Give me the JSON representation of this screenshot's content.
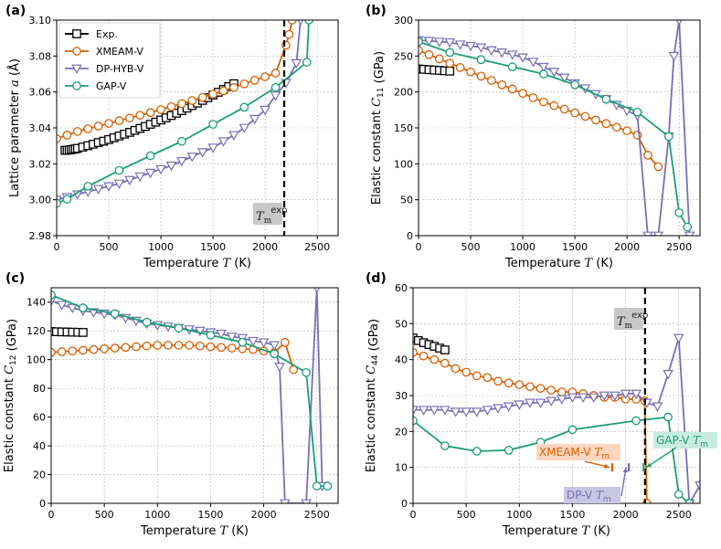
{
  "colors": {
    "exp": "#000000",
    "xmeam": "#d95f02",
    "dp": "#7570b3",
    "gap": "#1b9e77",
    "grid": "#b0b0b0"
  },
  "legend": {
    "entries": [
      {
        "key": "exp",
        "label": "Exp.",
        "marker": "square"
      },
      {
        "key": "xmeam",
        "label": "XMEAM-V",
        "marker": "circle"
      },
      {
        "key": "dp",
        "label": "DP-HYB-V",
        "marker": "triangle-down"
      },
      {
        "key": "gap",
        "label": "GAP-V",
        "marker": "circle"
      }
    ]
  },
  "chart_data": [
    {
      "type": "line",
      "panel": "(a)",
      "xlabel": "Temperature T (K)",
      "ylabel": "Lattice parameter a (Å)",
      "xlim": [
        0,
        2700
      ],
      "ylim": [
        2.98,
        3.1
      ],
      "xticks": [
        0,
        500,
        1000,
        1500,
        2000,
        2500
      ],
      "yticks": [
        2.98,
        3.0,
        3.02,
        3.04,
        3.06,
        3.08,
        3.1
      ],
      "grid": true,
      "legend_position": "top-left",
      "vline": {
        "x": 2183,
        "label": "T_m^exp"
      },
      "series": [
        {
          "key": "exp",
          "name": "Exp.",
          "x": [
            80,
            100,
            120,
            140,
            160,
            180,
            200,
            250,
            300,
            350,
            400,
            450,
            500,
            550,
            600,
            650,
            700,
            750,
            800,
            850,
            900,
            950,
            1000,
            1050,
            1100,
            1150,
            1200,
            1250,
            1300,
            1350,
            1400,
            1450,
            1500,
            1550,
            1600,
            1650,
            1700
          ],
          "y": [
            3.0275,
            3.0276,
            3.0277,
            3.0279,
            3.0281,
            3.0283,
            3.0286,
            3.0293,
            3.0301,
            3.0309,
            3.0318,
            3.0326,
            3.0335,
            3.0345,
            3.0355,
            3.0365,
            3.0375,
            3.0386,
            3.0397,
            3.0408,
            3.042,
            3.0432,
            3.0444,
            3.0456,
            3.0469,
            3.0482,
            3.0496,
            3.051,
            3.0524,
            3.0538,
            3.0553,
            3.0568,
            3.0583,
            3.0598,
            3.0614,
            3.063,
            3.0646
          ]
        },
        {
          "key": "xmeam",
          "name": "XMEAM-V",
          "x": [
            0,
            100,
            200,
            300,
            400,
            500,
            600,
            700,
            800,
            900,
            1000,
            1100,
            1200,
            1300,
            1400,
            1500,
            1600,
            1700,
            1800,
            1900,
            2000,
            2100,
            2200,
            2230,
            2260
          ],
          "y": [
            3.034,
            3.036,
            3.038,
            3.0395,
            3.041,
            3.0425,
            3.044,
            3.0455,
            3.047,
            3.0485,
            3.0502,
            3.0518,
            3.0535,
            3.0552,
            3.057,
            3.0588,
            3.0606,
            3.0625,
            3.0645,
            3.0665,
            3.0685,
            3.0705,
            3.086,
            3.092,
            3.1
          ]
        },
        {
          "key": "dp",
          "name": "DP-HYB-V",
          "x": [
            0,
            100,
            200,
            300,
            400,
            500,
            600,
            700,
            800,
            900,
            1000,
            1100,
            1200,
            1300,
            1400,
            1500,
            1600,
            1700,
            1800,
            1900,
            2000,
            2100,
            2200,
            2300,
            2340
          ],
          "y": [
            3.0,
            3.0015,
            3.003,
            3.0045,
            3.006,
            3.0075,
            3.009,
            3.011,
            3.013,
            3.015,
            3.017,
            3.019,
            3.0215,
            3.024,
            3.0265,
            3.029,
            3.0325,
            3.036,
            3.04,
            3.045,
            3.05,
            3.058,
            3.065,
            3.076,
            3.1
          ]
        },
        {
          "key": "gap",
          "name": "GAP-V",
          "x": [
            0,
            100,
            300,
            600,
            900,
            1200,
            1500,
            1800,
            2100,
            2400,
            2420
          ],
          "y": [
            2.998,
            3.0003,
            3.0075,
            3.0163,
            3.0245,
            3.0325,
            3.042,
            3.0515,
            3.0625,
            3.0765,
            3.1
          ]
        }
      ]
    },
    {
      "type": "line",
      "panel": "(b)",
      "xlabel": "Temperature T (K)",
      "ylabel": "Elastic constant C11 (GPa)",
      "xlim": [
        0,
        2700
      ],
      "ylim": [
        0,
        300
      ],
      "xticks": [
        0,
        500,
        1000,
        1500,
        2000,
        2500
      ],
      "yticks": [
        0,
        50,
        100,
        150,
        200,
        250,
        300
      ],
      "grid": true,
      "series": [
        {
          "key": "exp",
          "name": "Exp.",
          "x": [
            0,
            50,
            100,
            150,
            200,
            250,
            300
          ],
          "y": [
            232,
            231.5,
            231,
            230.5,
            230,
            229.5,
            229
          ]
        },
        {
          "key": "xmeam",
          "name": "XMEAM-V",
          "x": [
            0,
            100,
            200,
            300,
            400,
            500,
            600,
            700,
            800,
            900,
            1000,
            1100,
            1200,
            1300,
            1400,
            1500,
            1600,
            1700,
            1800,
            1900,
            2000,
            2100,
            2200,
            2300
          ],
          "y": [
            258,
            252,
            246,
            240,
            234,
            228,
            222,
            216,
            210,
            204,
            198,
            192,
            186,
            181,
            176,
            171,
            166,
            161,
            156,
            151,
            146,
            140,
            112,
            96
          ]
        },
        {
          "key": "dp",
          "name": "DP-HYB-V",
          "x": [
            0,
            100,
            200,
            300,
            400,
            500,
            600,
            700,
            800,
            900,
            1000,
            1100,
            1200,
            1300,
            1400,
            1500,
            1600,
            1700,
            1800,
            1900,
            2000,
            2100,
            2200,
            2300,
            2400,
            2450,
            2500,
            2600
          ],
          "y": [
            272,
            271,
            270,
            269,
            266,
            264,
            262,
            258,
            255,
            252,
            248,
            242,
            235,
            228,
            220,
            212,
            205,
            197,
            190,
            182,
            174,
            167,
            0,
            0,
            138,
            250,
            300,
            0
          ]
        },
        {
          "key": "gap",
          "name": "GAP-V",
          "x": [
            0,
            300,
            600,
            900,
            1200,
            1500,
            1800,
            2100,
            2400,
            2500,
            2580
          ],
          "y": [
            270,
            255,
            245,
            235,
            225,
            210,
            190,
            172,
            138,
            32,
            12
          ]
        }
      ]
    },
    {
      "type": "line",
      "panel": "(c)",
      "xlabel": "Temperature T (K)",
      "ylabel": "Elastic constant C12 (GPa)",
      "xlim": [
        0,
        2700
      ],
      "ylim": [
        0,
        150
      ],
      "xticks": [
        0,
        500,
        1000,
        1500,
        2000,
        2500
      ],
      "yticks": [
        0,
        20,
        40,
        60,
        80,
        100,
        120,
        140
      ],
      "grid": true,
      "series": [
        {
          "key": "exp",
          "name": "Exp.",
          "x": [
            0,
            50,
            100,
            150,
            200,
            250,
            300
          ],
          "y": [
            119.5,
            119.4,
            119.3,
            119.2,
            119.1,
            119,
            118.9
          ]
        },
        {
          "key": "xmeam",
          "name": "XMEAM-V",
          "x": [
            0,
            100,
            200,
            300,
            400,
            500,
            600,
            700,
            800,
            900,
            1000,
            1100,
            1200,
            1300,
            1400,
            1500,
            1600,
            1700,
            1800,
            1900,
            2000,
            2100,
            2200,
            2280
          ],
          "y": [
            105,
            105.5,
            106,
            106.5,
            107,
            107.5,
            108,
            108.5,
            109,
            109.5,
            110,
            110,
            110,
            110,
            109.5,
            109,
            108.5,
            108,
            107.5,
            107,
            106,
            105,
            112,
            93
          ]
        },
        {
          "key": "dp",
          "name": "DP-HYB-V",
          "x": [
            0,
            100,
            200,
            300,
            400,
            500,
            600,
            700,
            800,
            900,
            1000,
            1100,
            1200,
            1300,
            1400,
            1500,
            1600,
            1700,
            1800,
            1900,
            2000,
            2100,
            2150,
            2200,
            2400,
            2500,
            2550
          ],
          "y": [
            141,
            138,
            136,
            134,
            133,
            132,
            131,
            129,
            127,
            125,
            124,
            123,
            122,
            121,
            120,
            119,
            118,
            116,
            115,
            113,
            112,
            110,
            95,
            0,
            0,
            150,
            12
          ]
        },
        {
          "key": "gap",
          "name": "GAP-V",
          "x": [
            0,
            300,
            600,
            900,
            1200,
            1500,
            1800,
            2100,
            2400,
            2500,
            2600
          ],
          "y": [
            145,
            136,
            132,
            126,
            122,
            117,
            112,
            104,
            91,
            12,
            12
          ]
        }
      ]
    },
    {
      "type": "line",
      "panel": "(d)",
      "xlabel": "Temperature T (K)",
      "ylabel": "Elastic constant C44 (GPa)",
      "xlim": [
        0,
        2700
      ],
      "ylim": [
        0,
        60
      ],
      "xticks": [
        0,
        500,
        1000,
        1500,
        2000,
        2500
      ],
      "yticks": [
        0,
        10,
        20,
        30,
        40,
        50,
        60
      ],
      "grid": true,
      "vline": {
        "x": 2183,
        "label": "T_m^exp"
      },
      "annotations": [
        {
          "key": "xmeam",
          "label": "XMEAM-V T_m",
          "x": 1875
        },
        {
          "key": "dp",
          "label": "DP-V T_m",
          "x": 2030
        },
        {
          "key": "gap",
          "label": "GAP-V T_m",
          "x": 2170
        }
      ],
      "series": [
        {
          "key": "exp",
          "name": "Exp.",
          "x": [
            0,
            50,
            100,
            150,
            200,
            250,
            300
          ],
          "y": [
            46,
            45.3,
            44.7,
            44.2,
            43.7,
            43.2,
            42.7
          ]
        },
        {
          "key": "xmeam",
          "name": "XMEAM-V",
          "x": [
            0,
            100,
            200,
            300,
            400,
            500,
            600,
            700,
            800,
            900,
            1000,
            1100,
            1200,
            1300,
            1400,
            1500,
            1600,
            1700,
            1800,
            1900,
            2000,
            2100,
            2180,
            2200
          ],
          "y": [
            42,
            41,
            40,
            39,
            37.5,
            36.5,
            35.5,
            35,
            34,
            33.5,
            33,
            32.5,
            32,
            31.5,
            31,
            31,
            30.5,
            30,
            29.5,
            29.5,
            29,
            29,
            28.5,
            0
          ]
        },
        {
          "key": "dp",
          "name": "DP-HYB-V",
          "x": [
            0,
            100,
            200,
            300,
            400,
            500,
            600,
            700,
            800,
            900,
            1000,
            1100,
            1200,
            1300,
            1400,
            1500,
            1600,
            1700,
            1800,
            1900,
            2000,
            2100,
            2200,
            2300,
            2400,
            2500,
            2600,
            2700
          ],
          "y": [
            26,
            26,
            26,
            26,
            25.5,
            25.5,
            25.5,
            26,
            26.5,
            27,
            27.5,
            28,
            28,
            28.5,
            29,
            29.5,
            29.5,
            29.5,
            30,
            30,
            30.5,
            30.5,
            28,
            27,
            36,
            46,
            0,
            5
          ]
        },
        {
          "key": "gap",
          "name": "GAP-V",
          "x": [
            0,
            300,
            600,
            900,
            1200,
            1500,
            2100,
            2400,
            2500,
            2600
          ],
          "y": [
            23,
            16,
            14.5,
            14.8,
            17,
            20.5,
            23,
            24,
            2.5,
            0
          ]
        }
      ]
    }
  ]
}
